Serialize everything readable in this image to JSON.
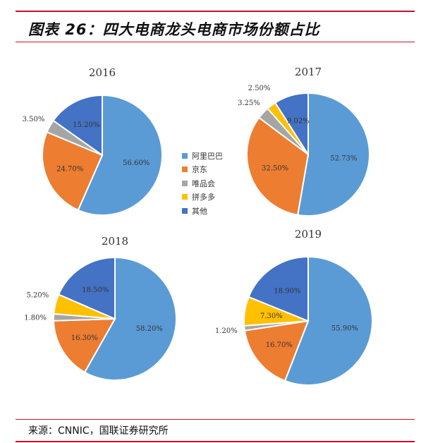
{
  "title": "图表 26：四大电商龙头电商市场份额占比",
  "source": "来源：CNNIC，国联证券研究所",
  "chart_data": [
    {
      "type": "pie",
      "title": "2016",
      "categories": [
        "阿里巴巴",
        "京东",
        "唯品会",
        "拼多多",
        "其他"
      ],
      "values": [
        56.6,
        24.7,
        3.5,
        0,
        15.2
      ],
      "labels": [
        "56.60%",
        "24.70%",
        "3.50%",
        "",
        "15.20%"
      ]
    },
    {
      "type": "pie",
      "title": "2017",
      "categories": [
        "阿里巴巴",
        "京东",
        "唯品会",
        "拼多多",
        "其他"
      ],
      "values": [
        52.73,
        32.5,
        3.25,
        2.5,
        9.02
      ],
      "labels": [
        "52.73%",
        "32.50%",
        "3.25%",
        "2.50%",
        "9.02%"
      ]
    },
    {
      "type": "pie",
      "title": "2018",
      "categories": [
        "阿里巴巴",
        "京东",
        "唯品会",
        "拼多多",
        "其他"
      ],
      "values": [
        58.2,
        16.3,
        1.8,
        5.2,
        18.5
      ],
      "labels": [
        "58.20%",
        "16.30%",
        "1.80%",
        "5.20%",
        "18.50%"
      ]
    },
    {
      "type": "pie",
      "title": "2019",
      "categories": [
        "阿里巴巴",
        "京东",
        "唯品会",
        "拼多多",
        "其他"
      ],
      "values": [
        55.9,
        16.7,
        1.2,
        7.3,
        18.9
      ],
      "labels": [
        "55.90%",
        "16.70%",
        "1.20%",
        "7.30%",
        "18.90%"
      ]
    }
  ],
  "legend": {
    "placement": "center",
    "items": [
      {
        "label": "阿里巴巴",
        "color": "#5B9BD5"
      },
      {
        "label": "京东",
        "color": "#ED7D31"
      },
      {
        "label": "唯品会",
        "color": "#A5A5A5"
      },
      {
        "label": "拼多多",
        "color": "#FFC000"
      },
      {
        "label": "其他",
        "color": "#4472C4"
      }
    ]
  }
}
